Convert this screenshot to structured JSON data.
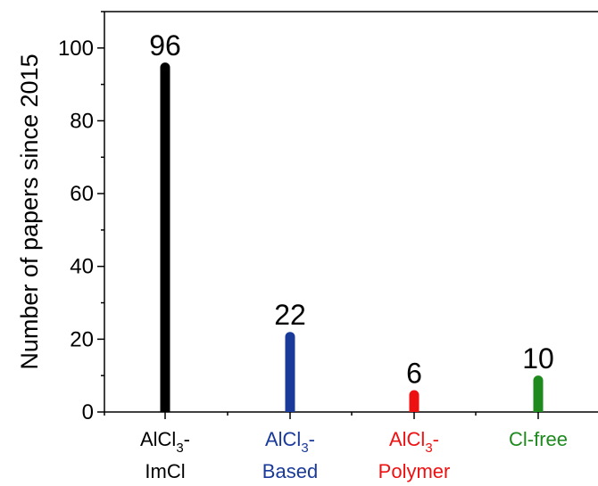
{
  "chart_data": {
    "type": "bar",
    "ylabel": "Number of papers since 2015",
    "xlabel": "",
    "ylim": [
      0,
      110
    ],
    "yticks": [
      0,
      20,
      40,
      60,
      80,
      100
    ],
    "grid": false,
    "categories": [
      {
        "line1": "AlCl",
        "sub": "3",
        "suffix": "-",
        "line2": "ImCl",
        "color": "#000000"
      },
      {
        "line1": "AlCl",
        "sub": "3",
        "suffix": "-",
        "line2": "Based",
        "color": "#1a3a9a"
      },
      {
        "line1": "AlCl",
        "sub": "3",
        "suffix": "-",
        "line2": "Polymer",
        "color": "#ee1111"
      },
      {
        "line1": "Cl-free",
        "sub": "",
        "suffix": "",
        "line2": "",
        "color": "#1e8a1e"
      }
    ],
    "values": [
      96,
      22,
      6,
      10
    ],
    "data_labels": [
      "96",
      "22",
      "6",
      "10"
    ]
  }
}
